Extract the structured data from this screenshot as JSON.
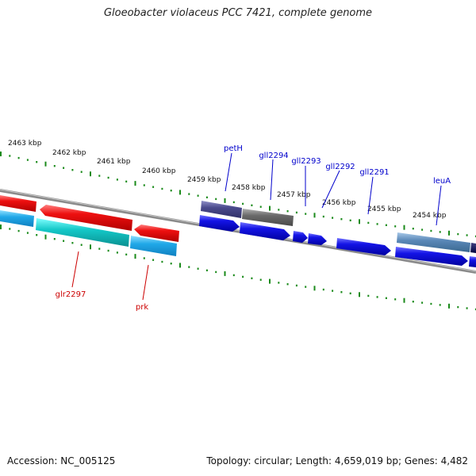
{
  "title": "Gloeobacter violaceus PCC 7421, complete genome",
  "footer": {
    "accession": "Accession: NC_005125",
    "stats": "Topology: circular; Length: 4,659,019 bp; Genes: 4,482"
  },
  "colors": {
    "forward_cds": "#1414e6",
    "reverse_cds": "#e61414",
    "forward_gene": "#5a6e9c",
    "reverse_gene": "#14c8c8",
    "forward_label": "#0000cc",
    "reverse_label": "#cc0000",
    "tick": "#1a8a1a",
    "backbone": "#808080"
  },
  "kbp_ticks": [
    "2463 kbp",
    "2462 kbp",
    "2461 kbp",
    "2460 kbp",
    "2459 kbp",
    "2458 kbp",
    "2457 kbp",
    "2456 kbp",
    "2455 kbp",
    "2454 kbp"
  ],
  "forward_labels": [
    "petH",
    "gll2294",
    "gll2293",
    "gll2292",
    "gll2291",
    "leuA"
  ],
  "reverse_labels": [
    "glr2297",
    "prk"
  ]
}
